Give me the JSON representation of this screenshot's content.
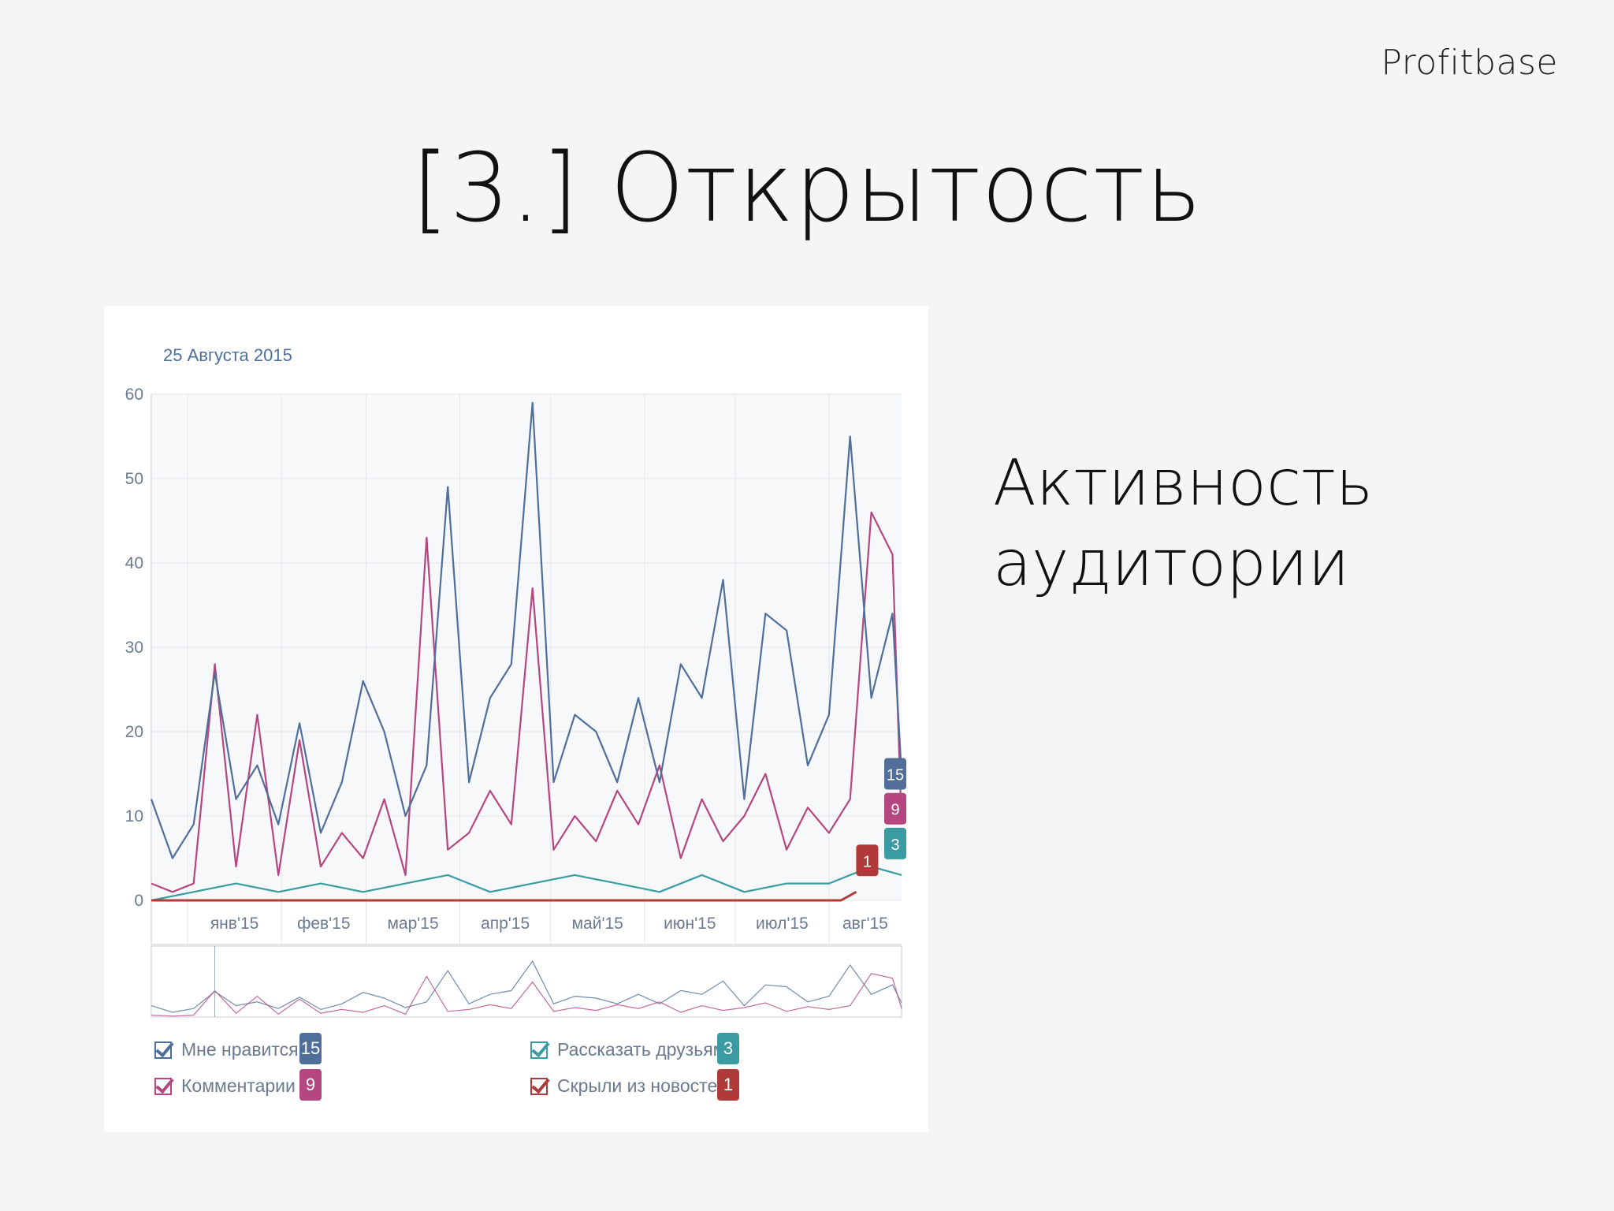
{
  "brand": "Profitbase",
  "title": "[3.] Открытость",
  "side_text": [
    "Активность",
    "аудитории"
  ],
  "chart": {
    "date_label": "25 Августа 2015"
  },
  "chart_data": {
    "type": "line",
    "title": "",
    "xlabel": "",
    "ylabel": "",
    "ylim": [
      0,
      60
    ],
    "yticks": [
      0,
      10,
      20,
      30,
      40,
      50,
      60
    ],
    "x_tick_labels": [
      "янв'15",
      "фев'15",
      "мар'15",
      "апр'15",
      "май'15",
      "июн'15",
      "июл'15",
      "авг'15"
    ],
    "x_range": [
      "2014-12-20",
      "2015-08-25"
    ],
    "grid": true,
    "legend_position": "bottom",
    "series": [
      {
        "name": "Мне нравится",
        "color": "#4f6f9a",
        "last_value": 15,
        "points": [
          [
            "2014-12-20",
            12
          ],
          [
            "2014-12-27",
            5
          ],
          [
            "2015-01-03",
            9
          ],
          [
            "2015-01-10",
            27
          ],
          [
            "2015-01-17",
            12
          ],
          [
            "2015-01-24",
            16
          ],
          [
            "2015-01-31",
            9
          ],
          [
            "2015-02-07",
            21
          ],
          [
            "2015-02-14",
            8
          ],
          [
            "2015-02-21",
            14
          ],
          [
            "2015-02-28",
            26
          ],
          [
            "2015-03-07",
            20
          ],
          [
            "2015-03-14",
            10
          ],
          [
            "2015-03-21",
            16
          ],
          [
            "2015-03-28",
            49
          ],
          [
            "2015-04-04",
            14
          ],
          [
            "2015-04-11",
            24
          ],
          [
            "2015-04-18",
            28
          ],
          [
            "2015-04-25",
            59
          ],
          [
            "2015-05-02",
            14
          ],
          [
            "2015-05-09",
            22
          ],
          [
            "2015-05-16",
            20
          ],
          [
            "2015-05-23",
            14
          ],
          [
            "2015-05-30",
            24
          ],
          [
            "2015-06-06",
            14
          ],
          [
            "2015-06-13",
            28
          ],
          [
            "2015-06-20",
            24
          ],
          [
            "2015-06-27",
            38
          ],
          [
            "2015-07-04",
            12
          ],
          [
            "2015-07-11",
            34
          ],
          [
            "2015-07-18",
            32
          ],
          [
            "2015-07-25",
            16
          ],
          [
            "2015-08-01",
            22
          ],
          [
            "2015-08-08",
            55
          ],
          [
            "2015-08-15",
            24
          ],
          [
            "2015-08-22",
            34
          ],
          [
            "2015-08-25",
            15
          ]
        ]
      },
      {
        "name": "Комментарии",
        "color": "#b5467f",
        "last_value": 9,
        "points": [
          [
            "2014-12-20",
            2
          ],
          [
            "2014-12-27",
            1
          ],
          [
            "2015-01-03",
            2
          ],
          [
            "2015-01-10",
            28
          ],
          [
            "2015-01-17",
            4
          ],
          [
            "2015-01-24",
            22
          ],
          [
            "2015-01-31",
            3
          ],
          [
            "2015-02-07",
            19
          ],
          [
            "2015-02-14",
            4
          ],
          [
            "2015-02-21",
            8
          ],
          [
            "2015-02-28",
            5
          ],
          [
            "2015-03-07",
            12
          ],
          [
            "2015-03-14",
            3
          ],
          [
            "2015-03-21",
            43
          ],
          [
            "2015-03-28",
            6
          ],
          [
            "2015-04-04",
            8
          ],
          [
            "2015-04-11",
            13
          ],
          [
            "2015-04-18",
            9
          ],
          [
            "2015-04-25",
            37
          ],
          [
            "2015-05-02",
            6
          ],
          [
            "2015-05-09",
            10
          ],
          [
            "2015-05-16",
            7
          ],
          [
            "2015-05-23",
            13
          ],
          [
            "2015-05-30",
            9
          ],
          [
            "2015-06-06",
            16
          ],
          [
            "2015-06-13",
            5
          ],
          [
            "2015-06-20",
            12
          ],
          [
            "2015-06-27",
            7
          ],
          [
            "2015-07-04",
            10
          ],
          [
            "2015-07-11",
            15
          ],
          [
            "2015-07-18",
            6
          ],
          [
            "2015-07-25",
            11
          ],
          [
            "2015-08-01",
            8
          ],
          [
            "2015-08-08",
            12
          ],
          [
            "2015-08-15",
            46
          ],
          [
            "2015-08-22",
            41
          ],
          [
            "2015-08-25",
            9
          ]
        ]
      },
      {
        "name": "Рассказать друзьям",
        "color": "#3a9ba3",
        "last_value": 3,
        "points": [
          [
            "2014-12-20",
            0
          ],
          [
            "2015-01-03",
            1
          ],
          [
            "2015-01-17",
            2
          ],
          [
            "2015-01-31",
            1
          ],
          [
            "2015-02-14",
            2
          ],
          [
            "2015-02-28",
            1
          ],
          [
            "2015-03-14",
            2
          ],
          [
            "2015-03-28",
            3
          ],
          [
            "2015-04-11",
            1
          ],
          [
            "2015-04-25",
            2
          ],
          [
            "2015-05-09",
            3
          ],
          [
            "2015-05-23",
            2
          ],
          [
            "2015-06-06",
            1
          ],
          [
            "2015-06-20",
            3
          ],
          [
            "2015-07-04",
            1
          ],
          [
            "2015-07-18",
            2
          ],
          [
            "2015-08-01",
            2
          ],
          [
            "2015-08-15",
            4
          ],
          [
            "2015-08-25",
            3
          ]
        ]
      },
      {
        "name": "Скрыли из новостей",
        "color": "#b03a3a",
        "last_value": 1,
        "points": [
          [
            "2014-12-20",
            0
          ],
          [
            "2015-02-01",
            0
          ],
          [
            "2015-04-01",
            0
          ],
          [
            "2015-06-01",
            0
          ],
          [
            "2015-08-05",
            0
          ],
          [
            "2015-08-10",
            1
          ]
        ]
      }
    ]
  }
}
